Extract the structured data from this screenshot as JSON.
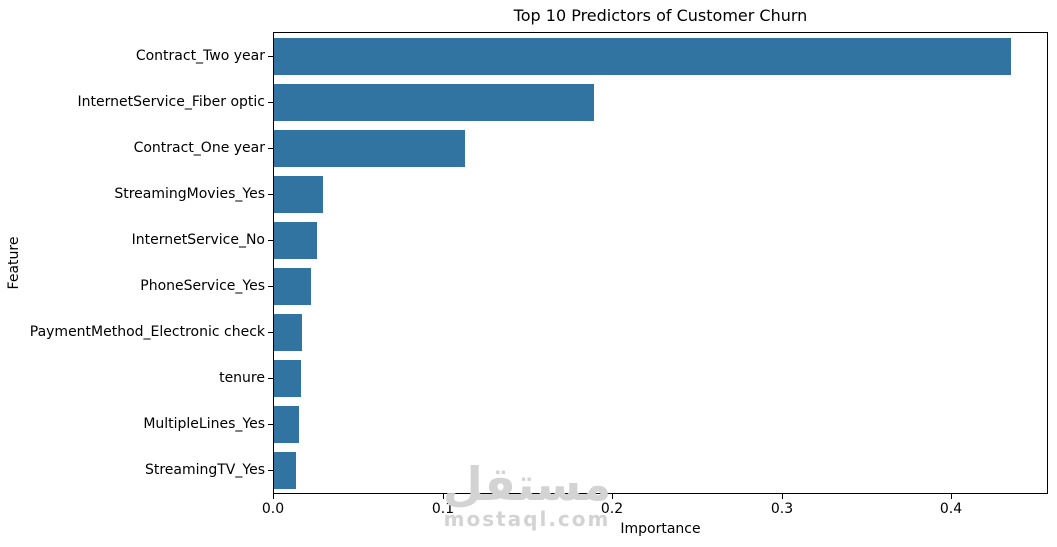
{
  "watermark": {
    "logo_text": "مستقل",
    "site_text": "mostaql.com",
    "color": "#d3d3d3"
  },
  "chart_data": {
    "type": "bar",
    "orientation": "horizontal",
    "title": "Top 10 Predictors of Customer Churn",
    "xlabel": "Importance",
    "ylabel": "Feature",
    "categories": [
      "Contract_Two year",
      "InternetService_Fiber optic",
      "Contract_One year",
      "StreamingMovies_Yes",
      "InternetService_No",
      "PhoneService_Yes",
      "PaymentMethod_Electronic check",
      "tenure",
      "MultipleLines_Yes",
      "StreamingTV_Yes"
    ],
    "values": [
      0.435,
      0.1885,
      0.1126,
      0.0287,
      0.0252,
      0.0216,
      0.0163,
      0.0157,
      0.0146,
      0.0132
    ],
    "xticks": [
      0.0,
      0.1,
      0.2,
      0.3,
      0.4
    ],
    "xtick_labels": [
      "0.0",
      "0.1",
      "0.2",
      "0.3",
      "0.4"
    ],
    "xlim": [
      0,
      0.456
    ],
    "grid": false,
    "legend": false,
    "bar_color": "#3173a1",
    "axis_color": "#000000"
  }
}
